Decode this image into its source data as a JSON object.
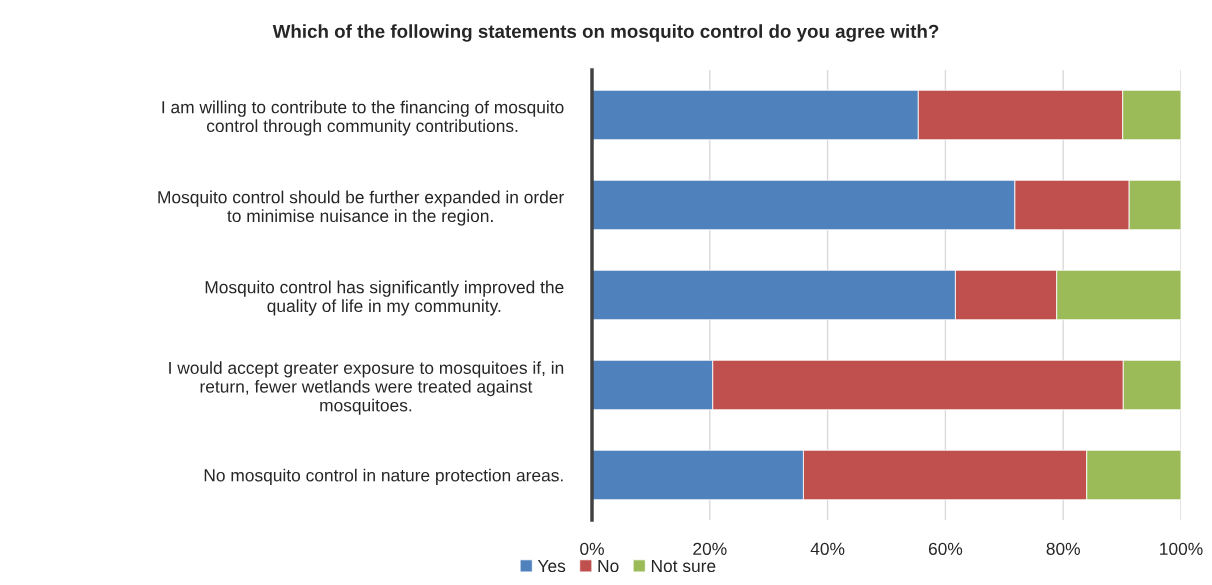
{
  "chart_data": {
    "type": "bar",
    "orientation": "horizontal",
    "stacked": true,
    "title": "Which of the following statements on mosquito control do you agree with?",
    "categories": [
      "I am willing to contribute to the financing of mosquito\ncontrol through community contributions.",
      "Mosquito control should be further expanded in order\nto minimise nuisance in the region.",
      "Mosquito control has significantly improved the\nquality of life in my community.",
      "I would accept greater exposure to mosquitoes if, in\nreturn, fewer wetlands were treated against\nmosquitoes.",
      "No mosquito control in nature protection areas."
    ],
    "series": [
      {
        "name": "Yes",
        "color": "#4f81bd",
        "values": [
          55.4,
          71.8,
          61.7,
          20.5,
          35.9
        ]
      },
      {
        "name": "No",
        "color": "#c0504d",
        "values": [
          34.7,
          19.4,
          17.2,
          69.7,
          48.1
        ]
      },
      {
        "name": "Not sure",
        "color": "#9bbb59",
        "values": [
          9.9,
          8.8,
          21.1,
          9.8,
          16.0
        ]
      }
    ],
    "xlim": [
      0,
      100
    ],
    "xticks": [
      {
        "value": 0,
        "label": "0%"
      },
      {
        "value": 20,
        "label": "20%"
      },
      {
        "value": 40,
        "label": "40%"
      },
      {
        "value": 60,
        "label": "60%"
      },
      {
        "value": 80,
        "label": "80%"
      },
      {
        "value": 100,
        "label": "100%"
      }
    ],
    "grid": "x",
    "legend": "bottom"
  }
}
